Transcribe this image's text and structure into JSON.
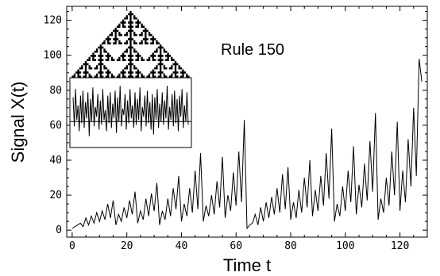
{
  "chart_data": {
    "type": "line",
    "title": "",
    "annotation": "Rule 150",
    "xlabel": "Time t",
    "ylabel": "Signal X(t)",
    "xlim": [
      -2,
      130
    ],
    "ylim": [
      -4,
      128
    ],
    "xticks": [
      0,
      20,
      40,
      60,
      80,
      100,
      120
    ],
    "yticks": [
      0,
      20,
      40,
      60,
      80,
      100,
      120
    ],
    "grid": false,
    "series": [
      {
        "values": [
          1,
          2,
          3,
          4,
          2,
          7,
          3,
          8,
          4,
          10,
          5,
          11,
          6,
          15,
          7,
          17,
          3,
          9,
          5,
          13,
          7,
          17,
          9,
          22,
          4,
          11,
          6,
          18,
          8,
          21,
          11,
          27,
          3,
          11,
          6,
          18,
          8,
          24,
          12,
          31,
          5,
          15,
          8,
          24,
          10,
          34,
          12,
          44,
          5,
          14,
          8,
          20,
          9,
          28,
          13,
          42,
          7,
          20,
          11,
          33,
          14,
          45,
          16,
          63,
          1,
          3,
          4,
          9,
          3,
          13,
          5,
          16,
          7,
          19,
          9,
          24,
          10,
          32,
          12,
          36,
          6,
          16,
          7,
          23,
          10,
          30,
          13,
          40,
          8,
          23,
          11,
          31,
          14,
          44,
          18,
          58,
          5,
          15,
          8,
          25,
          11,
          34,
          16,
          48,
          9,
          26,
          13,
          38,
          17,
          51,
          22,
          67,
          6,
          18,
          10,
          30,
          14,
          45,
          20,
          62,
          11,
          34,
          16,
          52,
          25,
          70,
          31,
          98,
          85
        ]
      }
    ],
    "inset": {
      "type": "line",
      "reference_line": 61,
      "values": [
        76,
        58,
        81,
        62,
        71,
        55,
        77,
        60,
        80,
        57,
        73,
        63,
        79,
        52,
        75,
        61,
        82,
        58,
        70,
        64,
        78,
        56,
        74,
        59,
        81,
        62,
        68,
        55,
        77,
        60,
        79,
        57,
        72,
        63,
        80,
        54,
        76,
        61,
        83,
        58,
        69,
        65,
        78,
        56,
        74,
        60,
        81,
        63,
        71,
        57,
        79,
        59,
        75,
        62,
        82,
        55,
        70,
        64,
        77,
        58,
        80,
        60,
        73,
        56,
        78,
        53,
        76,
        62,
        81,
        57,
        72,
        61,
        79,
        59,
        74,
        63,
        83,
        56,
        70,
        62,
        78,
        58,
        80,
        60,
        75,
        55,
        77,
        64,
        81,
        57,
        71,
        61,
        79,
        59
      ]
    }
  }
}
